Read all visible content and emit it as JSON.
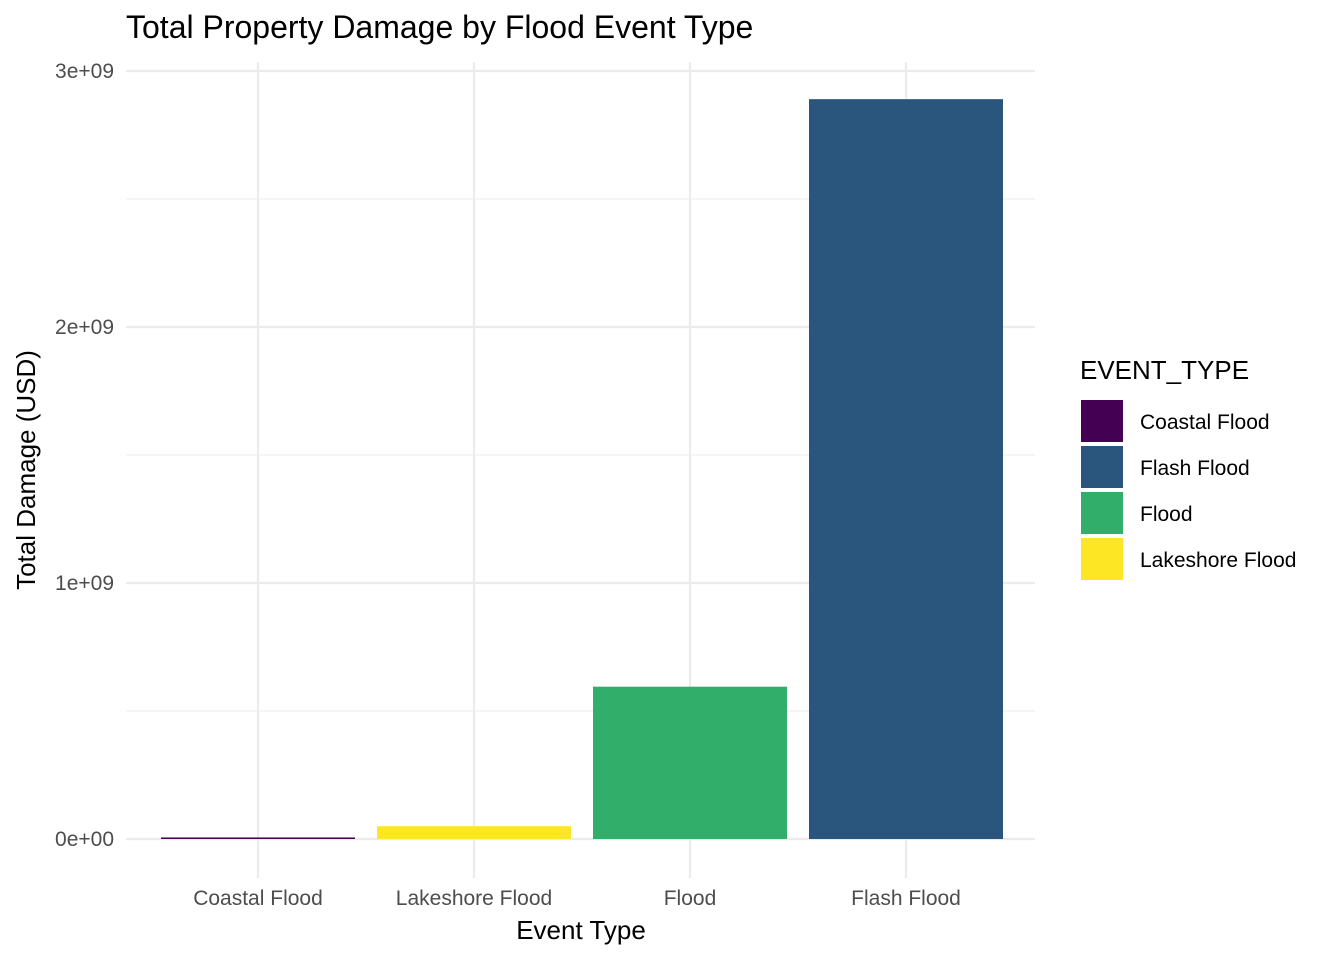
{
  "chart_data": {
    "type": "bar",
    "title": "Total Property Damage by Flood Event Type",
    "xlabel": "Event Type",
    "ylabel": "Total Damage (USD)",
    "categories": [
      "Coastal Flood",
      "Lakeshore Flood",
      "Flood",
      "Flash Flood"
    ],
    "values": [
      6000000,
      50000000,
      595000000,
      2890000000
    ],
    "ylim": [
      -120000000,
      3050000000
    ],
    "y_ticks": [
      0,
      1000000000,
      2000000000,
      3000000000
    ],
    "y_tick_labels": [
      "0e+00",
      "1e+09",
      "2e+09",
      "3e+09"
    ],
    "y_minor_ticks": [
      500000000,
      1500000000,
      2500000000
    ],
    "grid": true,
    "legend": {
      "title": "EVENT_TYPE",
      "placement": "right",
      "entries": [
        {
          "label": "Coastal Flood",
          "color": "#440154"
        },
        {
          "label": "Flash Flood",
          "color": "#2a567d"
        },
        {
          "label": "Flood",
          "color": "#31ae6a"
        },
        {
          "label": "Lakeshore Flood",
          "color": "#fde725"
        }
      ]
    },
    "bar_colors": {
      "Coastal Flood": "#440154",
      "Flash Flood": "#2a567d",
      "Flood": "#31ae6a",
      "Lakeshore Flood": "#fde725"
    }
  }
}
